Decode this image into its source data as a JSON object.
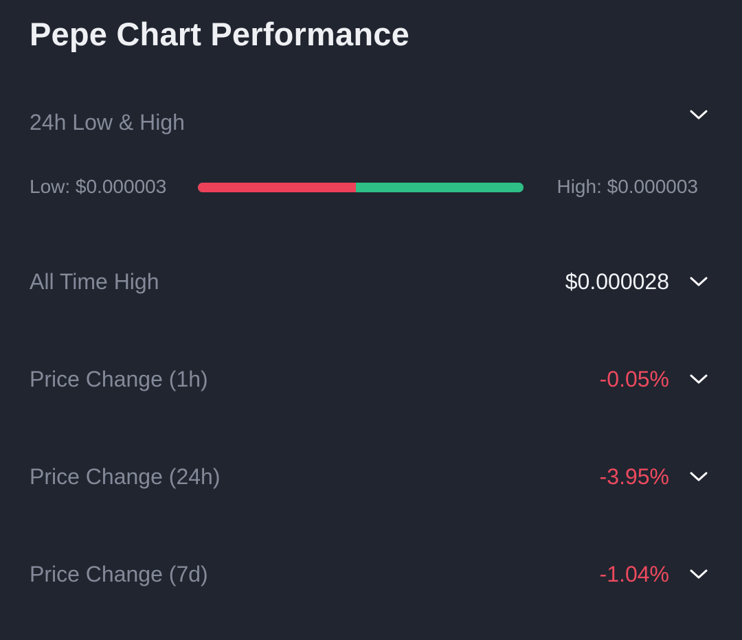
{
  "title": "Pepe Chart Performance",
  "colors": {
    "background": "#212530",
    "negative": "#ee4a5e",
    "positive": "#2ebf86",
    "label": "#848a99"
  },
  "range_24h": {
    "label": "24h Low & High",
    "low_text": "Low: $0.000003",
    "high_text": "High: $0.000003",
    "position_fraction": 0.485,
    "expand_icon": "chevron-down-icon"
  },
  "stats": [
    {
      "label": "All Time High",
      "value": "$0.000028",
      "tone": "neutral",
      "expand_icon": "chevron-down-icon"
    },
    {
      "label": "Price Change (1h)",
      "value": "-0.05%",
      "tone": "negative",
      "expand_icon": "chevron-down-icon"
    },
    {
      "label": "Price Change (24h)",
      "value": "-3.95%",
      "tone": "negative",
      "expand_icon": "chevron-down-icon"
    },
    {
      "label": "Price Change (7d)",
      "value": "-1.04%",
      "tone": "negative",
      "expand_icon": "chevron-down-icon"
    }
  ]
}
